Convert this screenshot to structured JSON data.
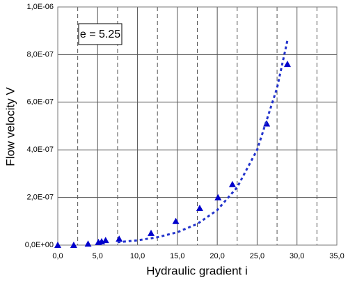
{
  "chart_data": {
    "type": "scatter",
    "xlabel": "Hydraulic gradient i",
    "ylabel": "Flow velocity V",
    "annotation": "e = 5.25",
    "xlim": [
      0,
      35
    ],
    "xticks": [
      {
        "value": 0,
        "label": "0,0"
      },
      {
        "value": 5,
        "label": "5,0"
      },
      {
        "value": 10,
        "label": "10,0"
      },
      {
        "value": 15,
        "label": "15,0"
      },
      {
        "value": 20,
        "label": "20,0"
      },
      {
        "value": 25,
        "label": "25,0"
      },
      {
        "value": 30,
        "label": "30,0"
      },
      {
        "value": 35,
        "label": "35,0"
      }
    ],
    "x_minor_grid": [
      2.5,
      7.5,
      12.5,
      17.5,
      22.5,
      27.5,
      32.5
    ],
    "ylim": [
      0,
      1e-06
    ],
    "yticks": [
      {
        "value": 0,
        "label": "0,0E+00"
      },
      {
        "value": 2e-07,
        "label": "2,0E-07"
      },
      {
        "value": 4e-07,
        "label": "4,0E-07"
      },
      {
        "value": 6e-07,
        "label": "6,0E-07"
      },
      {
        "value": 8e-07,
        "label": "8,0E-07"
      },
      {
        "value": 1e-06,
        "label": "1,0E-06"
      }
    ],
    "grid": true,
    "series": [
      {
        "color": "#0000cc",
        "marker": "triangle",
        "x": [
          0,
          2.0,
          3.8,
          5.1,
          5.5,
          6.0,
          7.7,
          11.7,
          14.8,
          17.8,
          20.1,
          21.9,
          26.2,
          28.8
        ],
        "values": [
          0,
          0,
          5e-09,
          1.2e-08,
          1.5e-08,
          2e-08,
          2.6e-08,
          5e-08,
          1e-07,
          1.55e-07,
          2e-07,
          2.55e-07,
          5.1e-07,
          7.6e-07
        ]
      },
      {
        "color": "#2233cc",
        "marker": "dotted-line",
        "x": [
          7.5,
          10,
          12.5,
          15,
          17.5,
          20,
          22.5,
          25,
          27.5,
          28.8
        ],
        "values": [
          1.2e-08,
          2e-08,
          3.3e-08,
          5.4e-08,
          8.9e-08,
          1.47e-07,
          2.43e-07,
          4e-07,
          6.6e-07,
          8.6e-07
        ]
      }
    ]
  }
}
